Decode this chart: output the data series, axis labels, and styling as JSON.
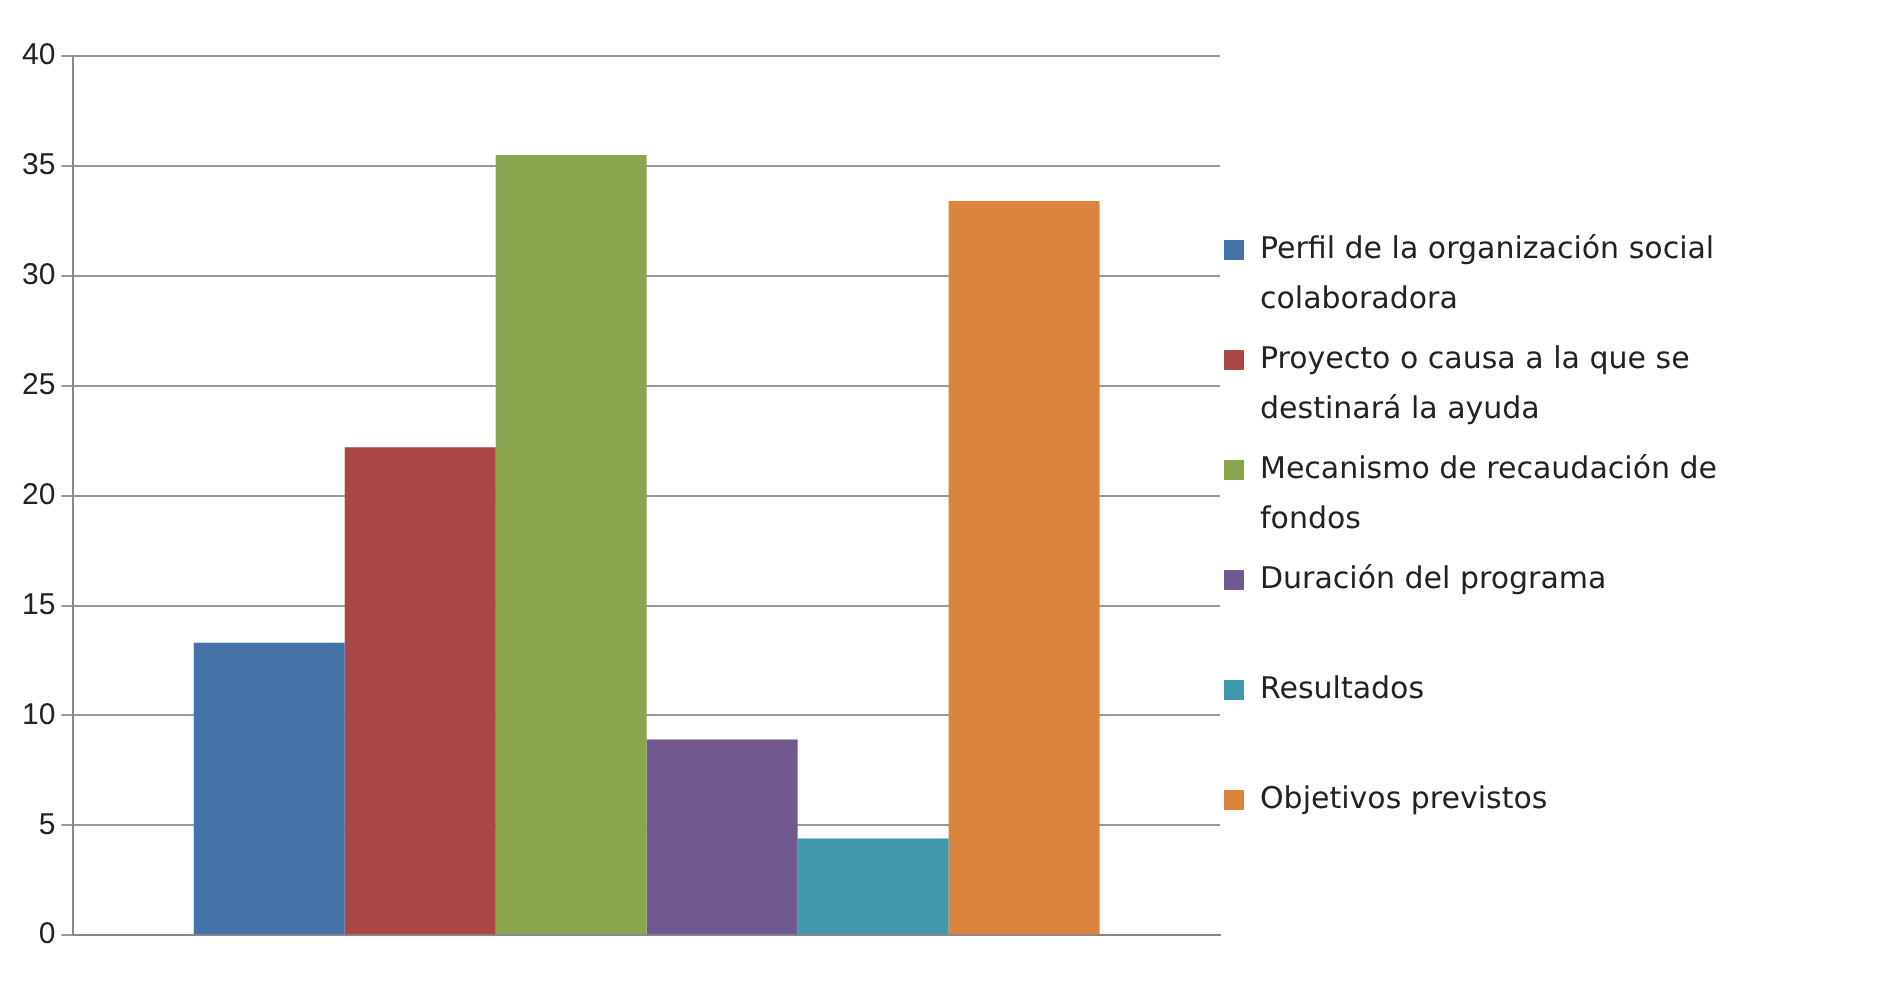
{
  "chart_data": {
    "type": "bar",
    "categories": [
      null
    ],
    "series": [
      {
        "name": "Perfil de la organización social colaboradora",
        "color": "#4572a7",
        "values": [
          13.3
        ]
      },
      {
        "name": "Proyecto o causa a la que se destinará la ayuda",
        "color": "#aa4643",
        "values": [
          22.2
        ]
      },
      {
        "name": "Mecanismo de recaudación de fondos",
        "color": "#89a54e",
        "values": [
          35.5
        ]
      },
      {
        "name": "Duración del programa",
        "color": "#71588f",
        "values": [
          8.9
        ]
      },
      {
        "name": "Resultados",
        "color": "#4198af",
        "values": [
          4.4
        ]
      },
      {
        "name": "Objetivos previstos",
        "color": "#db843d",
        "values": [
          33.4
        ]
      }
    ],
    "ylim": [
      0,
      40
    ],
    "yticks": [
      0,
      5,
      10,
      15,
      20,
      25,
      30,
      35,
      40
    ],
    "grid": "y",
    "legend": "right"
  }
}
